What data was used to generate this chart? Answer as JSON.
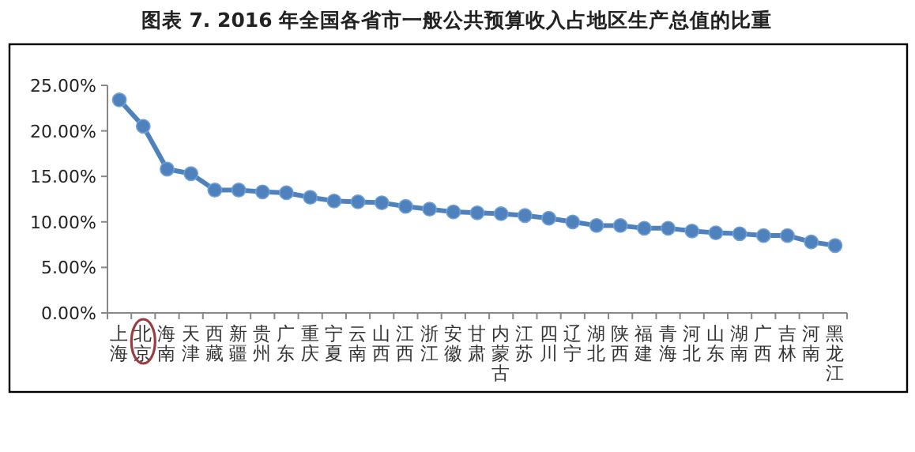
{
  "chart_data": {
    "type": "line",
    "title": "图表 7.    2016 年全国各省市一般公共预算收入占地区生产总值的比重",
    "categories": [
      "上海",
      "北京",
      "海南",
      "天津",
      "西藏",
      "新疆",
      "贵州",
      "广东",
      "重庆",
      "宁夏",
      "云南",
      "山西",
      "江西",
      "浙江",
      "安徽",
      "甘肃",
      "内蒙古",
      "江苏",
      "四川",
      "辽宁",
      "湖北",
      "陕西",
      "福建",
      "青海",
      "河北",
      "山东",
      "湖南",
      "广西",
      "吉林",
      "河南",
      "黑龙江"
    ],
    "values": [
      23.4,
      20.5,
      15.8,
      15.3,
      13.5,
      13.5,
      13.3,
      13.2,
      12.7,
      12.3,
      12.2,
      12.1,
      11.7,
      11.4,
      11.1,
      11.0,
      10.9,
      10.7,
      10.4,
      10.0,
      9.6,
      9.6,
      9.3,
      9.3,
      9.0,
      8.8,
      8.7,
      8.5,
      8.5,
      7.8,
      7.4
    ],
    "color": "#4f81bd",
    "marker": "circle",
    "grid": false,
    "ylim": [
      0,
      25
    ],
    "yticks": [
      {
        "value": 0,
        "label": "0.00%"
      },
      {
        "value": 5,
        "label": "5.00%"
      },
      {
        "value": 10,
        "label": "10.00%"
      },
      {
        "value": 15,
        "label": "15.00%"
      },
      {
        "value": 20,
        "label": "20.00%"
      },
      {
        "value": 25,
        "label": "25.00%"
      }
    ]
  }
}
